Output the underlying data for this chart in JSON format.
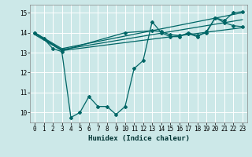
{
  "xlabel": "Humidex (Indice chaleur)",
  "ylabel": "",
  "bg_color": "#cce8e8",
  "grid_color": "#ffffff",
  "line_color": "#006666",
  "xlim": [
    -0.5,
    23.5
  ],
  "ylim": [
    9.5,
    15.4
  ],
  "xticks": [
    0,
    1,
    2,
    3,
    4,
    5,
    6,
    7,
    8,
    9,
    10,
    11,
    12,
    13,
    14,
    15,
    16,
    17,
    18,
    19,
    20,
    21,
    22,
    23
  ],
  "yticks": [
    10,
    11,
    12,
    13,
    14,
    15
  ],
  "main_x": [
    0,
    1,
    2,
    3,
    4,
    5,
    6,
    7,
    8,
    9,
    10,
    11,
    12,
    13,
    14,
    15,
    16,
    17,
    18,
    19,
    20,
    21,
    22,
    23
  ],
  "main_y": [
    14.0,
    13.7,
    13.2,
    13.05,
    9.75,
    10.0,
    10.8,
    10.3,
    10.3,
    9.9,
    10.3,
    12.2,
    12.6,
    14.55,
    14.0,
    13.8,
    13.8,
    14.0,
    13.85,
    14.0,
    14.75,
    14.6,
    15.0,
    15.05
  ],
  "line2_x": [
    0,
    3,
    10,
    13,
    14,
    15,
    16,
    17,
    18,
    19,
    20,
    21,
    22,
    23
  ],
  "line2_y": [
    14.0,
    13.1,
    14.0,
    14.1,
    14.05,
    13.9,
    13.85,
    13.95,
    13.8,
    14.05,
    14.75,
    14.5,
    14.35,
    14.3
  ],
  "line3_x": [
    0,
    3,
    23
  ],
  "line3_y": [
    13.95,
    13.15,
    14.65
  ],
  "line4_x": [
    0,
    3,
    23
  ],
  "line4_y": [
    14.0,
    13.2,
    15.0
  ],
  "line5_x": [
    0,
    3,
    23
  ],
  "line5_y": [
    13.9,
    13.1,
    14.25
  ],
  "tick_fontsize": 5.5,
  "xlabel_fontsize": 6.5
}
